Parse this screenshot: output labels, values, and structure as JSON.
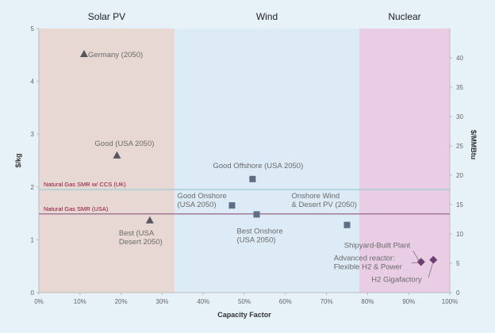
{
  "chart_data": {
    "type": "scatter",
    "title": "",
    "xlabel": "Capacity Factor",
    "ylabel": "$/kg",
    "y2label": "$/MMBtu",
    "xlim": [
      0,
      100
    ],
    "ylim": [
      0,
      5
    ],
    "y2lim": [
      0,
      45
    ],
    "x_ticks": [
      "0%",
      "10%",
      "20%",
      "30%",
      "40%",
      "50%",
      "60%",
      "70%",
      "80%",
      "90%",
      "100%"
    ],
    "y_ticks": [
      "0",
      "1",
      "2",
      "3",
      "4",
      "5"
    ],
    "y2_ticks": [
      "0",
      "5",
      "10",
      "15",
      "20",
      "25",
      "30",
      "35",
      "40"
    ],
    "regions": [
      {
        "name": "Solar PV",
        "x_start": 0,
        "x_end": 33,
        "color": "#e8d8d3"
      },
      {
        "name": "Wind",
        "x_start": 33,
        "x_end": 78,
        "color": "#dcebf5"
      },
      {
        "name": "Nuclear",
        "x_start": 78,
        "x_end": 100,
        "color": "#e8cde4"
      }
    ],
    "reference_lines": [
      {
        "label": "Natural Gas SMR w/ CCS (UK)",
        "y": 1.95,
        "color": "#a6cdd8"
      },
      {
        "label": "Natural Gas SMR (USA)",
        "y": 1.49,
        "color": "#a07a98"
      }
    ],
    "series": [
      {
        "marker": "triangle",
        "color": "#55575f",
        "points": [
          {
            "x": 11,
            "y": 4.52,
            "label": "Germany (2050)"
          },
          {
            "x": 19,
            "y": 2.6,
            "label": "Good (USA 2050)"
          },
          {
            "x": 27,
            "y": 1.37,
            "label": "Best (USA Desert 2050)"
          }
        ]
      },
      {
        "marker": "square",
        "color": "#5e6e85",
        "points": [
          {
            "x": 52,
            "y": 2.15,
            "label": "Good Offshore (USA 2050)"
          },
          {
            "x": 47,
            "y": 1.65,
            "label": "Good Onshore (USA 2050)"
          },
          {
            "x": 53,
            "y": 1.48,
            "label": "Best Onshore (USA 2050)"
          },
          {
            "x": 75,
            "y": 1.28,
            "label": "Onshore Wind & Desert PV (2050)"
          }
        ]
      },
      {
        "marker": "diamond",
        "color": "#6d3f6f",
        "points": [
          {
            "x": 93,
            "y": 0.58,
            "label": "Shipyard-Built Plant"
          },
          {
            "x": 93,
            "y": 0.58,
            "label": "Advanced reactor: Flexible H2 & Power"
          },
          {
            "x": 96,
            "y": 0.62,
            "label": "H2 Gigafactory"
          }
        ]
      }
    ]
  }
}
